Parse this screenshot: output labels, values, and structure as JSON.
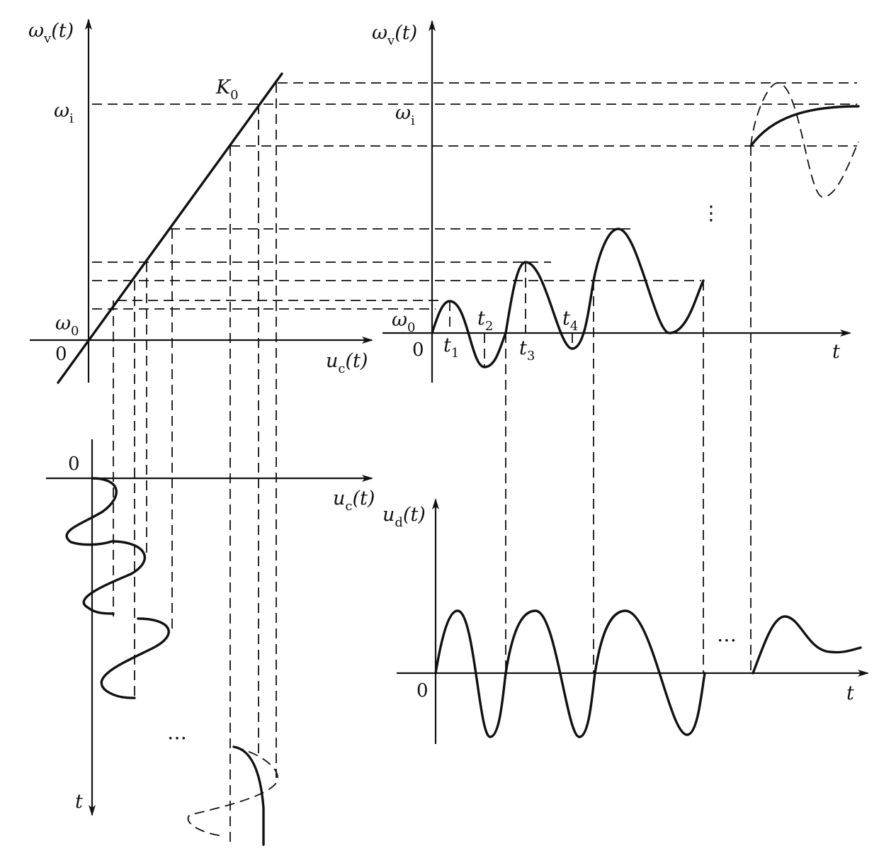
{
  "axis_labels": {
    "omega_v_main": "ω",
    "omega_v_main_sub": "v",
    "omega_v_main_arg": "(t)",
    "omega_i_main": "ω",
    "omega_i_main_sub": "i",
    "omega_0_main": "ω",
    "omega_0_main_sub": "0",
    "origin_main": "0",
    "uc_main": "u",
    "uc_main_sub": "c",
    "uc_main_arg": "(t)",
    "k0": "K",
    "k0_sub": "0",
    "omega_v_right": "ω",
    "omega_v_right_sub": "v",
    "omega_v_right_arg": "(t)",
    "omega_i_right": "ω",
    "omega_i_right_sub": "i",
    "omega_0_right": "ω",
    "omega_0_right_sub": "0",
    "origin_right": "0",
    "t_right": "t",
    "t1": "t",
    "t1_sub": "1",
    "t2": "t",
    "t2_sub": "2",
    "t3": "t",
    "t3_sub": "3",
    "t4": "t",
    "t4_sub": "4",
    "origin_lower_left": "0",
    "uc_lower": "u",
    "uc_lower_sub": "c",
    "uc_lower_arg": "(t)",
    "t_lower_left": "t",
    "ud": "u",
    "ud_sub": "d",
    "ud_arg": "(t)",
    "origin_lower_right": "0",
    "t_lower_right": "t"
  },
  "ellipsis": {
    "lower_left": "…",
    "lower_right": "…",
    "right_vertical": "⋮"
  }
}
